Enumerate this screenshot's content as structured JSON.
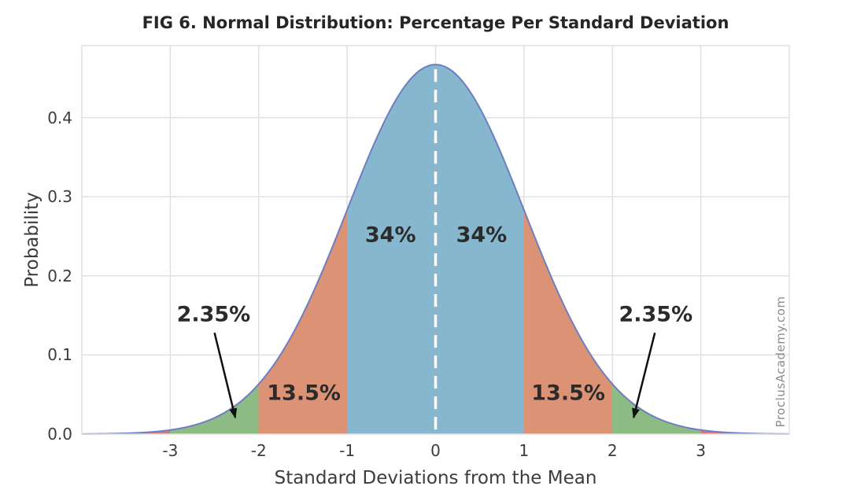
{
  "chart_data": {
    "type": "area",
    "title": "FIG 6. Normal Distribution: Percentage Per Standard Deviation",
    "xlabel": "Standard Deviations from the Mean",
    "ylabel": "Probability",
    "watermark": "ProclusAcademy.com",
    "xlim": [
      -4,
      4
    ],
    "ylim": [
      0,
      0.491
    ],
    "grid": true,
    "legend": false,
    "x_ticks": [
      {
        "v": -3,
        "label": "-3"
      },
      {
        "v": -2,
        "label": "-2"
      },
      {
        "v": -1,
        "label": "-1"
      },
      {
        "v": 0,
        "label": "0"
      },
      {
        "v": 1,
        "label": "1"
      },
      {
        "v": 2,
        "label": "2"
      },
      {
        "v": 3,
        "label": "3"
      }
    ],
    "y_ticks": [
      {
        "v": 0,
        "label": "0.0"
      },
      {
        "v": 0.1,
        "label": "0.1"
      },
      {
        "v": 0.2,
        "label": "0.2"
      },
      {
        "v": 0.3,
        "label": "0.3"
      },
      {
        "v": 0.4,
        "label": "0.4"
      }
    ],
    "curve": {
      "shape": "gaussian",
      "mean": 0,
      "sd": 1,
      "peak_height": 0.467
    },
    "mean_line": {
      "x": 0,
      "style": "dashed"
    },
    "regions": [
      {
        "from": -4,
        "to": -3,
        "sd_band": "below -3",
        "percent": null,
        "color": "#d4787e"
      },
      {
        "from": -3,
        "to": -2,
        "sd_band": "-3 to -2",
        "percent": "2.35%",
        "color": "#8cbb83"
      },
      {
        "from": -2,
        "to": -1,
        "sd_band": "-2 to -1",
        "percent": "13.5%",
        "color": "#dc9274"
      },
      {
        "from": -1,
        "to": 0,
        "sd_band": "-1 to 0",
        "percent": "34%",
        "color": "#86b7cf"
      },
      {
        "from": 0,
        "to": 1,
        "sd_band": "0 to 1",
        "percent": "34%",
        "color": "#86b7cf"
      },
      {
        "from": 1,
        "to": 2,
        "sd_band": "1 to 2",
        "percent": "13.5%",
        "color": "#dc9274"
      },
      {
        "from": 2,
        "to": 3,
        "sd_band": "2 to 3",
        "percent": "2.35%",
        "color": "#8cbb83"
      },
      {
        "from": 3,
        "to": 4,
        "sd_band": "above 3",
        "percent": null,
        "color": "#d4787e"
      }
    ],
    "annotations": [
      {
        "text": "34%",
        "x": -0.51,
        "y": 0.2515
      },
      {
        "text": "34%",
        "x": 0.52,
        "y": 0.2515
      },
      {
        "text": "13.5%",
        "x": -1.49,
        "y": 0.0515
      },
      {
        "text": "13.5%",
        "x": 1.5,
        "y": 0.0515
      },
      {
        "text": "2.35%",
        "x": -2.51,
        "y": 0.151,
        "arrow": {
          "from": [
            -2.5,
            0.128
          ],
          "to": [
            -2.265,
            0.021
          ]
        }
      },
      {
        "text": "2.35%",
        "x": 2.49,
        "y": 0.151,
        "arrow": {
          "from": [
            2.48,
            0.128
          ],
          "to": [
            2.24,
            0.021
          ]
        }
      }
    ],
    "colors": {
      "grid": "#e0e0e0",
      "spine": "#e0e0e0",
      "curve_line": "#6d7fc1",
      "mean_line": "#ffffff",
      "arrow": "#111111",
      "tick_text": "#3c3c3c",
      "title_text": "#262626",
      "annotation_text": "#2b2b2b",
      "watermark_text": "#8c8c8c"
    }
  }
}
